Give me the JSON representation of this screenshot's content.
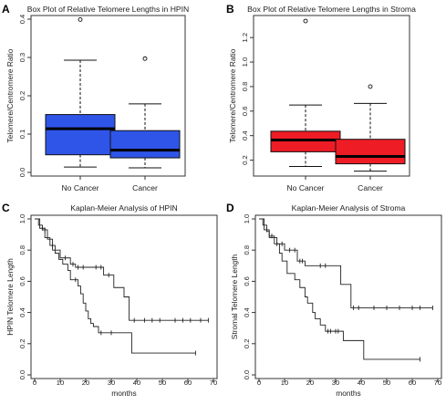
{
  "chart_data": [
    {
      "panel": "A",
      "type": "box",
      "title": "Box Plot of Relative Telomere Lengths in HPIN",
      "xlabel": "",
      "ylabel": "Telomere/Centromere Ratio",
      "ylim": [
        0,
        0.4
      ],
      "yticks": [
        0.0,
        0.1,
        0.2,
        0.3,
        0.4
      ],
      "color": "#2f55e8",
      "categories": [
        {
          "name": "No Cancer",
          "min": 0.014,
          "q1": 0.046,
          "median": 0.114,
          "q3": 0.151,
          "max": 0.293,
          "outliers": [
            0.399
          ]
        },
        {
          "name": "Cancer",
          "min": 0.012,
          "q1": 0.038,
          "median": 0.058,
          "q3": 0.109,
          "max": 0.179,
          "outliers": [
            0.297
          ]
        }
      ]
    },
    {
      "panel": "B",
      "type": "box",
      "title": "Box Plot of Relative Telomere Lengths in Stroma",
      "xlabel": "",
      "ylabel": "Telomere/Centromere Ratio",
      "ylim": [
        0.1,
        1.35
      ],
      "yticks": [
        0.2,
        0.4,
        0.6,
        0.8,
        1.0,
        1.2
      ],
      "color": "#ee1c25",
      "categories": [
        {
          "name": "No Cancer",
          "min": 0.148,
          "q1": 0.268,
          "median": 0.364,
          "q3": 0.436,
          "max": 0.65,
          "outliers": [
            1.335
          ]
        },
        {
          "name": "Cancer",
          "min": 0.11,
          "q1": 0.17,
          "median": 0.23,
          "q3": 0.37,
          "max": 0.663,
          "outliers": [
            0.8
          ]
        }
      ]
    },
    {
      "panel": "C",
      "type": "line",
      "subtype": "step",
      "title": "Kaplan-Meier Analysis of HPIN",
      "xlabel": "months",
      "ylabel": "HPIN Telomere Length",
      "xlim": [
        0,
        70
      ],
      "ylim": [
        0,
        1
      ],
      "xticks": [
        0,
        10,
        20,
        30,
        40,
        50,
        60,
        70
      ],
      "yticks": [
        0.0,
        0.2,
        0.4,
        0.6,
        0.8,
        1.0
      ],
      "series": [
        {
          "x": [
            0,
            2,
            4,
            6,
            8,
            9.5,
            11,
            13,
            14,
            17,
            18,
            19,
            20,
            21,
            22,
            23,
            25,
            32,
            38,
            63
          ],
          "y": [
            1,
            0.94,
            0.88,
            0.83,
            0.78,
            0.74,
            0.71,
            0.67,
            0.61,
            0.57,
            0.52,
            0.46,
            0.41,
            0.36,
            0.33,
            0.31,
            0.27,
            0.27,
            0.14,
            0.14
          ],
          "censored_x": [
            3,
            7,
            16,
            26,
            30,
            63
          ]
        },
        {
          "x": [
            0,
            1.5,
            3,
            5,
            7,
            10,
            14,
            16,
            25,
            27,
            31,
            35,
            37,
            68
          ],
          "y": [
            1,
            0.96,
            0.93,
            0.87,
            0.8,
            0.75,
            0.71,
            0.69,
            0.69,
            0.64,
            0.56,
            0.5,
            0.35,
            0.35
          ],
          "censored_x": [
            4,
            12,
            15,
            17,
            19,
            24,
            26,
            29,
            39,
            43,
            46,
            49,
            55,
            58,
            61,
            65,
            68
          ]
        }
      ]
    },
    {
      "panel": "D",
      "type": "line",
      "subtype": "step",
      "title": "Kaplan-Meier Analysis of Stroma",
      "xlabel": "months",
      "ylabel": "Stromal Telomere Length",
      "xlim": [
        0,
        70
      ],
      "ylim": [
        0,
        1
      ],
      "xticks": [
        0,
        10,
        20,
        30,
        40,
        50,
        60,
        70
      ],
      "yticks": [
        0.0,
        0.2,
        0.4,
        0.6,
        0.8,
        1.0
      ],
      "series": [
        {
          "x": [
            0,
            1.5,
            3,
            4,
            6,
            8,
            9,
            11,
            14,
            16,
            18,
            19,
            21,
            22,
            24,
            26,
            33,
            41,
            63
          ],
          "y": [
            1,
            0.96,
            0.92,
            0.89,
            0.84,
            0.78,
            0.73,
            0.65,
            0.61,
            0.56,
            0.5,
            0.46,
            0.4,
            0.36,
            0.32,
            0.28,
            0.22,
            0.1,
            0.1
          ],
          "censored_x": [
            5,
            7,
            27,
            28,
            30,
            31,
            63
          ]
        },
        {
          "x": [
            0,
            2,
            4,
            7,
            10,
            15,
            18,
            32,
            36,
            68
          ],
          "y": [
            1,
            0.93,
            0.88,
            0.84,
            0.8,
            0.73,
            0.7,
            0.58,
            0.43,
            0.43
          ],
          "censored_x": [
            3,
            9,
            12,
            14,
            16,
            17,
            24,
            26,
            37,
            39,
            45,
            50,
            55,
            60,
            63,
            68
          ]
        }
      ]
    }
  ]
}
